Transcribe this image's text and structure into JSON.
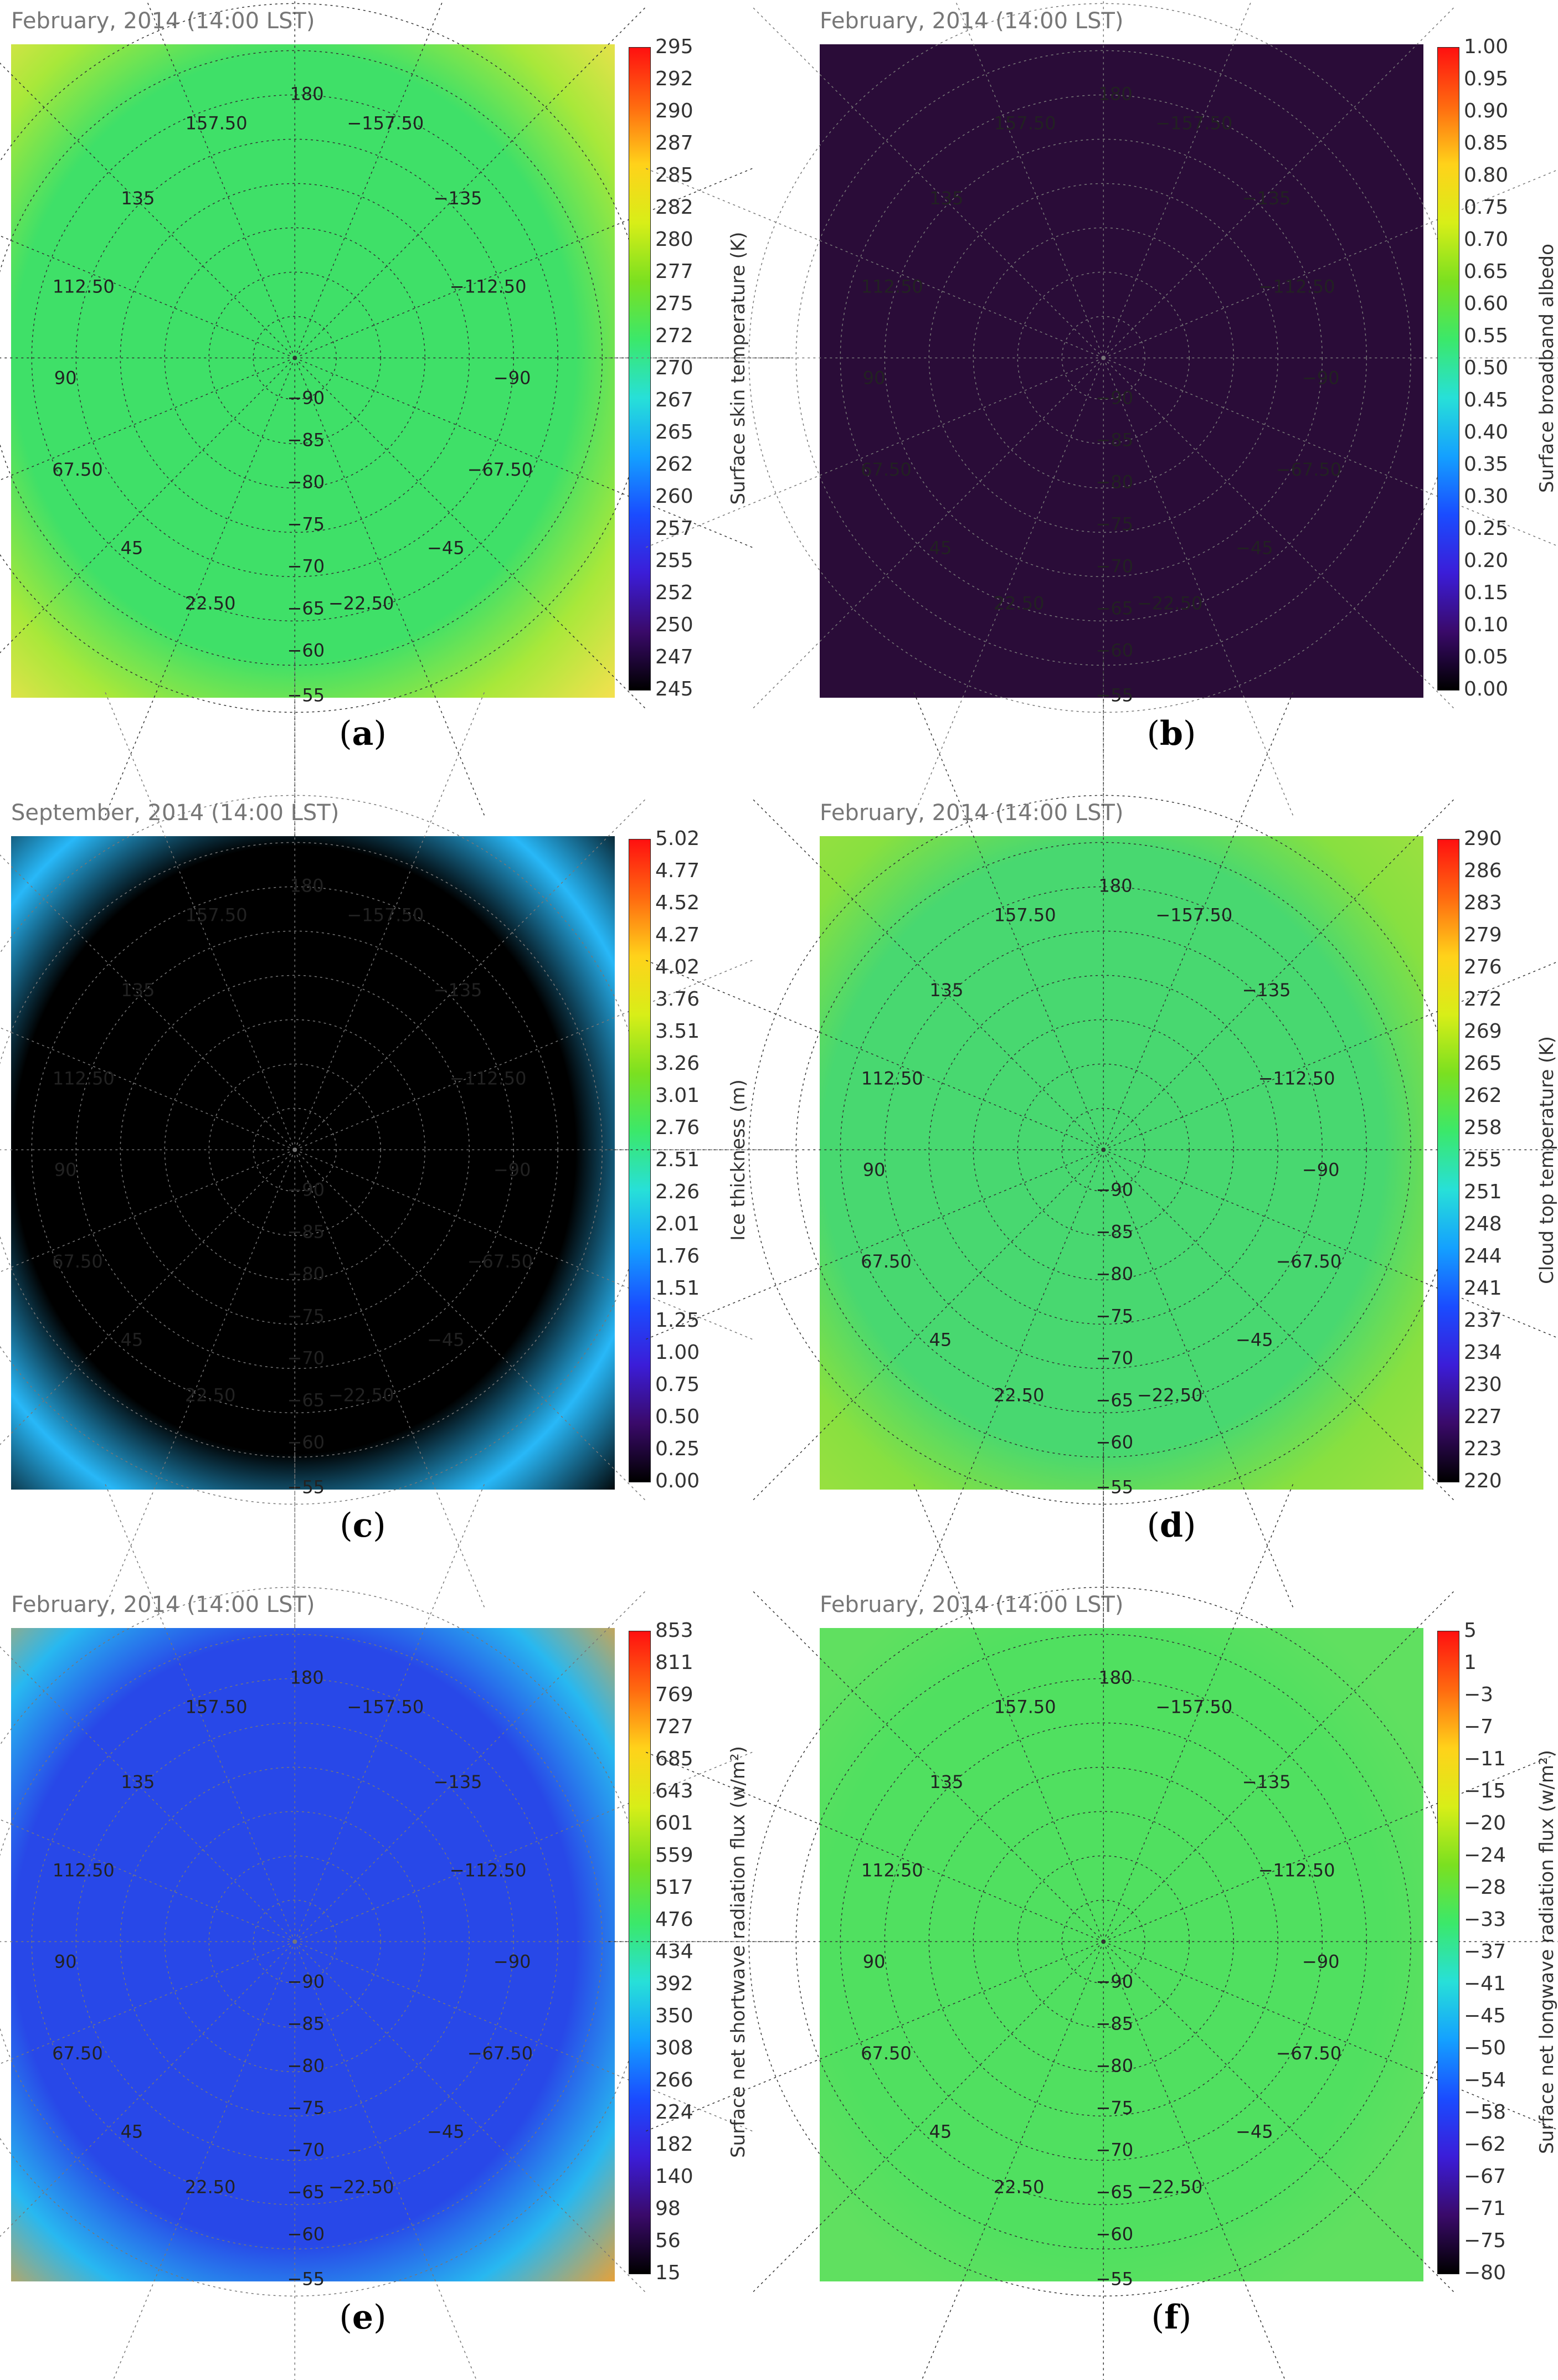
{
  "panels": [
    {
      "id": "a",
      "caption": "a",
      "title": "February, 2014 (14:00 LST)",
      "colorbar": {
        "label": "Surface skin temperature (K)",
        "ticks": [
          "295",
          "292",
          "290",
          "287",
          "285",
          "282",
          "280",
          "277",
          "275",
          "272",
          "270",
          "267",
          "265",
          "262",
          "260",
          "257",
          "255",
          "252",
          "250",
          "247",
          "245"
        ],
        "gradient": [
          "#000000",
          "#3a0a6a",
          "#3b1dd8",
          "#1a4cff",
          "#14a0ff",
          "#27e0d8",
          "#3be86a",
          "#7be020",
          "#d8ee18",
          "#ffd21a",
          "#ff6a10",
          "#ff1010"
        ]
      },
      "map": {
        "ocean": "#3fe068",
        "outer_ring": "#a8e83a",
        "corner": "#f8e050",
        "land_outer": "#a8c8ff",
        "land_inner": "#3a4ae0",
        "land_core": "#4a2ac0",
        "graticule": true
      }
    },
    {
      "id": "b",
      "caption": "b",
      "title": "February, 2014 (14:00 LST)",
      "colorbar": {
        "label": "Surface broadband albedo",
        "ticks": [
          "1.00",
          "0.95",
          "0.90",
          "0.85",
          "0.80",
          "0.75",
          "0.70",
          "0.65",
          "0.60",
          "0.55",
          "0.50",
          "0.45",
          "0.40",
          "0.35",
          "0.30",
          "0.25",
          "0.20",
          "0.15",
          "0.10",
          "0.05",
          "0.00"
        ],
        "gradient": [
          "#000000",
          "#3a0a6a",
          "#3b1dd8",
          "#1a4cff",
          "#14a0ff",
          "#27e0d8",
          "#3be86a",
          "#7be020",
          "#d8ee18",
          "#ffd21a",
          "#ff6a10",
          "#ff1010"
        ]
      },
      "map": {
        "ocean": "#2a0c38",
        "outer_ring": "#2a0c38",
        "corner": "#2a0c38",
        "land_outer": "#3be070",
        "land_inner": "#d8e830",
        "land_core": "#f8a830",
        "graticule": true
      }
    },
    {
      "id": "c",
      "caption": "c",
      "title": "September, 2014 (14:00 LST)",
      "colorbar": {
        "label": "Ice thickness (m)",
        "ticks": [
          "5.02",
          "4.77",
          "4.52",
          "4.27",
          "4.02",
          "3.76",
          "3.51",
          "3.26",
          "3.01",
          "2.76",
          "2.51",
          "2.26",
          "2.01",
          "1.76",
          "1.51",
          "1.25",
          "1.00",
          "0.75",
          "0.50",
          "0.25",
          "0.00"
        ],
        "gradient": [
          "#000000",
          "#3a0a6a",
          "#3b1dd8",
          "#1a4cff",
          "#14a0ff",
          "#27e0d8",
          "#3be86a",
          "#7be020",
          "#d8ee18",
          "#ffd21a",
          "#ff6a10",
          "#ff1010"
        ]
      },
      "map": {
        "ocean": "#000000",
        "outer_ring": "#28b8f8",
        "corner": "#000000",
        "land_outer": "#ffffff",
        "land_inner": "#ffffff",
        "land_core": "#ffffff",
        "graticule": true
      }
    },
    {
      "id": "d",
      "caption": "d",
      "title": "February, 2014 (14:00 LST)",
      "colorbar": {
        "label": "Cloud top temperature (K)",
        "ticks": [
          "290",
          "286",
          "283",
          "279",
          "276",
          "272",
          "269",
          "265",
          "262",
          "258",
          "255",
          "251",
          "248",
          "244",
          "241",
          "237",
          "234",
          "230",
          "227",
          "223",
          "220"
        ],
        "gradient": [
          "#000000",
          "#3a0a6a",
          "#3b1dd8",
          "#1a4cff",
          "#14a0ff",
          "#27e0d8",
          "#3be86a",
          "#7be020",
          "#d8ee18",
          "#ffd21a",
          "#ff6a10",
          "#ff1010"
        ]
      },
      "map": {
        "ocean": "#48d870",
        "outer_ring": "#88e040",
        "corner": "#a0e040",
        "land_outer": "#60b8ff",
        "land_inner": "#3a3ae8",
        "land_core": "#4a2ab0",
        "graticule": true
      }
    },
    {
      "id": "e",
      "caption": "e",
      "title": "February, 2014 (14:00 LST)",
      "colorbar": {
        "label": "Surface net shortwave radiation flux (w/m²)",
        "ticks": [
          "853",
          "811",
          "769",
          "727",
          "685",
          "643",
          "601",
          "559",
          "517",
          "476",
          "434",
          "392",
          "350",
          "308",
          "266",
          "224",
          "182",
          "140",
          "98",
          "56",
          "15"
        ],
        "gradient": [
          "#000000",
          "#3a0a6a",
          "#3b1dd8",
          "#1a4cff",
          "#14a0ff",
          "#27e0d8",
          "#3be86a",
          "#7be020",
          "#d8ee18",
          "#ffd21a",
          "#ff6a10",
          "#ff1010"
        ]
      },
      "map": {
        "ocean": "#2848e8",
        "outer_ring": "#28b8f0",
        "corner": "#f0a030",
        "land_outer": "#3a1a70",
        "land_inner": "#3a1a70",
        "land_core": "#3a1a70",
        "graticule": true
      }
    },
    {
      "id": "f",
      "caption": "f",
      "title": "February, 2014 (14:00 LST)",
      "colorbar": {
        "label": "Surface net longwave radiation flux (w/m²)",
        "ticks": [
          "5",
          "1",
          "−3",
          "−7",
          "−11",
          "−15",
          "−20",
          "−24",
          "−28",
          "−33",
          "−37",
          "−41",
          "−45",
          "−50",
          "−54",
          "−58",
          "−62",
          "−67",
          "−71",
          "−75",
          "−80"
        ],
        "gradient": [
          "#000000",
          "#3a0a6a",
          "#3b1dd8",
          "#1a4cff",
          "#14a0ff",
          "#27e0d8",
          "#3be86a",
          "#7be020",
          "#d8ee18",
          "#ffd21a",
          "#ff6a10",
          "#ff1010"
        ]
      },
      "map": {
        "ocean": "#50e060",
        "outer_ring": "#60e060",
        "corner": "#60e060",
        "land_outer": "#c0e840",
        "land_inner": "#e8e830",
        "land_core": "#c0e040",
        "graticule": true
      }
    }
  ],
  "grid_labels": {
    "lon": [
      "180",
      "157.50",
      "−157.50",
      "135",
      "−135",
      "112.50",
      "−112.50",
      "90",
      "−90",
      "67.50",
      "−67.50",
      "45",
      "−45",
      "22.50",
      "−22.50"
    ],
    "lat": [
      "−90",
      "−85",
      "−80",
      "−75",
      "−70",
      "−65",
      "−60",
      "−55"
    ]
  }
}
